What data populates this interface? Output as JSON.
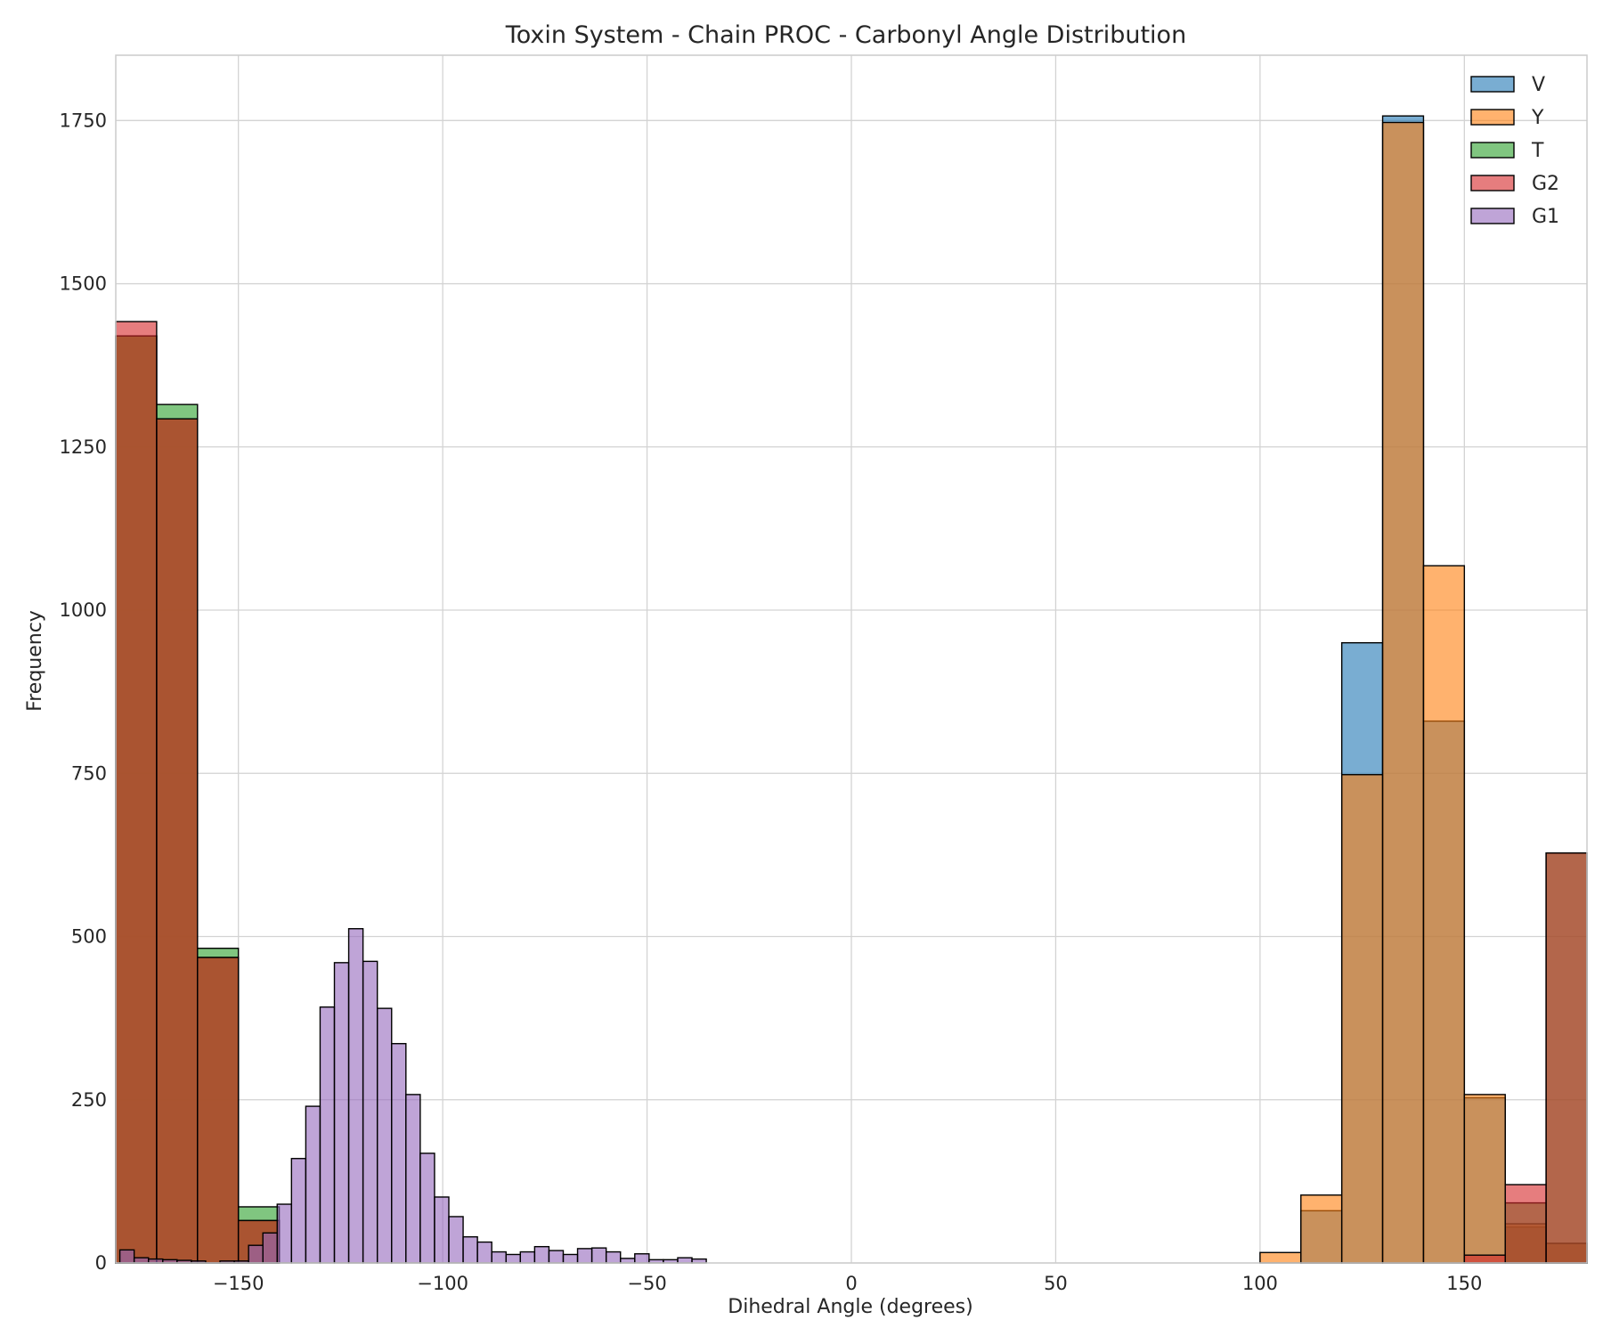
{
  "chart_data": {
    "type": "bar",
    "title": "Toxin System - Chain PROC - Carbonyl Angle Distribution",
    "xlabel": "Dihedral Angle (degrees)",
    "ylabel": "Frequency",
    "xlim": [
      -180,
      180
    ],
    "ylim": [
      0,
      1850
    ],
    "xticks": [
      -150,
      -100,
      -50,
      0,
      50,
      100,
      150
    ],
    "xtick_labels": [
      "−150",
      "−100",
      "−50",
      "0",
      "50",
      "100",
      "150"
    ],
    "yticks": [
      0,
      250,
      500,
      750,
      1000,
      1250,
      1500,
      1750
    ],
    "yticks_labels": [
      "0",
      "250",
      "500",
      "750",
      "1000",
      "1250",
      "1500",
      "1750"
    ],
    "grid": true,
    "legend_position": "top-right",
    "series": [
      {
        "name": "V",
        "color": "#1f77b4",
        "bin_width": 10,
        "bins": [
          [
            -180,
            1420
          ],
          [
            -170,
            1293
          ],
          [
            -160,
            468
          ],
          [
            -150,
            65
          ],
          [
            110,
            80
          ],
          [
            120,
            950
          ],
          [
            130,
            1757
          ],
          [
            140,
            830
          ],
          [
            150,
            253
          ],
          [
            160,
            55
          ],
          [
            170,
            30
          ]
        ]
      },
      {
        "name": "Y",
        "color": "#ff7f0e",
        "bin_width": 10,
        "bins": [
          [
            -180,
            1420
          ],
          [
            -170,
            1293
          ],
          [
            -160,
            468
          ],
          [
            -150,
            65
          ],
          [
            100,
            16
          ],
          [
            110,
            104
          ],
          [
            120,
            748
          ],
          [
            130,
            1747
          ],
          [
            140,
            1068
          ],
          [
            150,
            258
          ],
          [
            160,
            60
          ],
          [
            170,
            30
          ]
        ]
      },
      {
        "name": "T",
        "color": "#2ca02c",
        "bin_width": 10,
        "bins": [
          [
            -180,
            1420
          ],
          [
            -170,
            1315
          ],
          [
            -160,
            482
          ],
          [
            -150,
            86
          ],
          [
            160,
            92
          ],
          [
            170,
            628
          ]
        ]
      },
      {
        "name": "G2",
        "color": "#d62728",
        "bin_width": 10,
        "bins": [
          [
            -180,
            1442
          ],
          [
            -170,
            1293
          ],
          [
            -160,
            468
          ],
          [
            -150,
            65
          ],
          [
            150,
            12
          ],
          [
            160,
            120
          ],
          [
            170,
            628
          ]
        ]
      },
      {
        "name": "G1",
        "color": "#9467bd",
        "bin_width": 3.5,
        "bins": [
          [
            -179,
            20
          ],
          [
            -175.5,
            8
          ],
          [
            -172,
            6
          ],
          [
            -168.5,
            5
          ],
          [
            -165,
            4
          ],
          [
            -161.5,
            3
          ],
          [
            -154.5,
            3
          ],
          [
            -151,
            3
          ],
          [
            -147.5,
            27
          ],
          [
            -144,
            46
          ],
          [
            -140.5,
            90
          ],
          [
            -137,
            160
          ],
          [
            -133.5,
            240
          ],
          [
            -130,
            392
          ],
          [
            -126.5,
            460
          ],
          [
            -123,
            512
          ],
          [
            -119.5,
            462
          ],
          [
            -116,
            390
          ],
          [
            -112.5,
            336
          ],
          [
            -109,
            258
          ],
          [
            -105.5,
            168
          ],
          [
            -102,
            101
          ],
          [
            -98.5,
            71
          ],
          [
            -95,
            40
          ],
          [
            -91.5,
            32
          ],
          [
            -88,
            17
          ],
          [
            -84.5,
            13
          ],
          [
            -81,
            17
          ],
          [
            -77.5,
            25
          ],
          [
            -74,
            19
          ],
          [
            -70.5,
            13
          ],
          [
            -67,
            22
          ],
          [
            -63.5,
            23
          ],
          [
            -60,
            17
          ],
          [
            -56.5,
            7
          ],
          [
            -53,
            14
          ],
          [
            -49.5,
            5
          ],
          [
            -46,
            5
          ],
          [
            -42.5,
            8
          ],
          [
            -39,
            6
          ]
        ]
      }
    ]
  }
}
